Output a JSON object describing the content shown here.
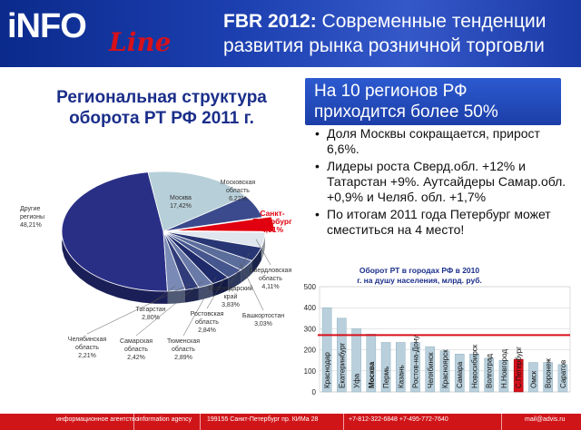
{
  "header": {
    "logo_main": "iNFO",
    "logo_script": "Line",
    "title_bold": "FBR 2012:",
    "title_rest": " Современные тенденции развития рынка розничной торговли"
  },
  "left": {
    "title": "Региональная структура оборота РТ РФ 2011 г."
  },
  "right": {
    "box_title": "На 10 регионов РФ приходится более 50%",
    "bullets": [
      "Доля Москвы сокращается, прирост 6,6%.",
      "Лидеры роста Сверд.обл. +12% и Татарстан +9%. Аутсайдеры Самар.обл. +0,9% и Челяб. обл. +1,7%",
      "По итогам 2011 года Петербург может сместиться на 4 место!"
    ]
  },
  "footer": {
    "agency_ru": "информационное агентство",
    "agency_en": "information agency",
    "address": "199155 Санкт-Петербург пр. КИМа 28",
    "phones": "+7-812-322-6848 +7-495-772-7640",
    "email": "mail@advis.ru"
  },
  "colors": {
    "header_blue": "#1c3fb0",
    "brand_red": "#d01519",
    "pie_highlight": "#e0000f",
    "bar_fill": "#b9d0dc",
    "bar_highlight": "#d8101a",
    "avg_line": "#d8101a"
  },
  "chart_data": [
    {
      "type": "pie",
      "labels": [
        "Другие регионы",
        "Москва",
        "Московская область",
        "Санкт-Петербург",
        "Свердловская область",
        "Краснодарский край",
        "Башкортостан",
        "Ростовская область",
        "Тюменская область",
        "Самарская область",
        "Челябинская область",
        "Татарстан"
      ],
      "value_labels": [
        "48,21%",
        "17,42%",
        "6,22%",
        "4,01%",
        "4,11%",
        "3,83%",
        "3,03%",
        "2,84%",
        "2,89%",
        "2,42%",
        "2,21%",
        "2,80%"
      ],
      "values": [
        48.21,
        17.42,
        6.22,
        4.01,
        4.11,
        3.83,
        3.03,
        2.84,
        2.89,
        2.42,
        2.21,
        2.8
      ],
      "highlight": "Санкт-Петербург"
    },
    {
      "type": "bar",
      "title": "Оборот РТ в городах РФ в 2010 г. на душу населения, млрд. руб.",
      "categories": [
        "Краснодар",
        "Екатеринбург",
        "Уфа",
        "Москва",
        "Пермь",
        "Казань",
        "Ростов-на-Дону",
        "Челябинск",
        "Красноярск",
        "Самара",
        "Новосибирск",
        "Волгоград",
        "Н.Новгород",
        "С.Петербург",
        "Омск",
        "Воронеж",
        "Саратов"
      ],
      "values": [
        400,
        350,
        300,
        275,
        235,
        235,
        235,
        215,
        195,
        180,
        180,
        160,
        150,
        155,
        140,
        140,
        130
      ],
      "highlight": "С.Петербург",
      "reference_line": 270,
      "ylim": [
        0,
        500
      ],
      "yticks": [
        0,
        100,
        200,
        300,
        400,
        500
      ]
    }
  ]
}
